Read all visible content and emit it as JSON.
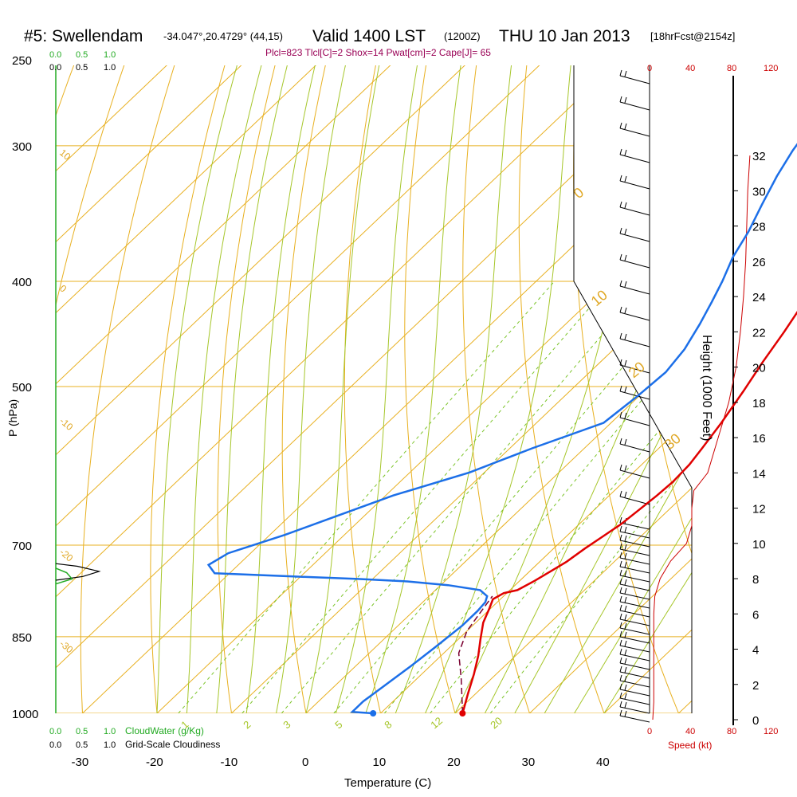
{
  "header": {
    "station": "#5: Swellendam",
    "coords": "-34.047°,20.4729° (44,15)",
    "valid": "Valid 1400 LST",
    "utc": "(1200Z)",
    "date": "THU 10 Jan 2013",
    "forecast": "[18hrFcst@2154z]",
    "indices": "Plcl=823 Tlcl[C]=2 Shox=14 Pwat[cm]=2 Cape[J]= 65"
  },
  "axes": {
    "y_label": "P (hPa)",
    "x_label": "Temperature (C)",
    "height_label": "Height (1000 Feet)",
    "speed_label": "Speed (kt)",
    "cloudwater_label": "CloudWater (g/Kg)",
    "cloudiness_label": "Grid-Scale Cloudiness",
    "cloud_ticks": [
      "0.0",
      "0.5",
      "1.0"
    ],
    "speed_ticks": [
      "0",
      "40",
      "80",
      "120"
    ]
  },
  "colors": {
    "temperature": "#e00000",
    "dewpoint": "#1c6fe8",
    "parcel": "#7a0030",
    "isotherm": "#e8b020",
    "dry_adiabat": "#e8b020",
    "moist_adiabat": "#a6c62a",
    "mixing_ratio": "#7cc42a",
    "wind_speed": "#cc0000",
    "cloudwater": "#22aa22"
  },
  "chart_data": {
    "type": "line",
    "title": "#5: Swellendam Valid 1400 LST THU 10 Jan 2013",
    "xlabel": "Temperature (C)",
    "ylabel": "P (hPa)",
    "x_ticks": [
      -30,
      -20,
      -10,
      0,
      10,
      20,
      30,
      40
    ],
    "xlim": [
      -35,
      45
    ],
    "ylim": [
      1000,
      250
    ],
    "y_ticks": [
      1000,
      850,
      700,
      500,
      400,
      300,
      250
    ],
    "y_scale": "log",
    "series": [
      {
        "name": "Temperature",
        "points": [
          [
            21,
            1000
          ],
          [
            19,
            960
          ],
          [
            17,
            920
          ],
          [
            15,
            885
          ],
          [
            13,
            855
          ],
          [
            11,
            825
          ],
          [
            9.8,
            800
          ],
          [
            9,
            785
          ],
          [
            9.6,
            775
          ],
          [
            11,
            770
          ],
          [
            12,
            755
          ],
          [
            12.8,
            740
          ],
          [
            13.6,
            725
          ],
          [
            14.2,
            705
          ],
          [
            14.8,
            690
          ],
          [
            15.6,
            670
          ],
          [
            16,
            650
          ],
          [
            16.4,
            630
          ],
          [
            16.6,
            612
          ],
          [
            16.4,
            590
          ],
          [
            15.8,
            570
          ],
          [
            14.8,
            540
          ],
          [
            13.3,
            505
          ],
          [
            11.8,
            475
          ],
          [
            10.4,
            445
          ],
          [
            9,
            420
          ],
          [
            7.4,
            390
          ],
          [
            5.8,
            360
          ],
          [
            4.5,
            340
          ],
          [
            3,
            320
          ],
          [
            1.8,
            305
          ],
          [
            0.3,
            280
          ],
          [
            -0.2,
            265
          ]
        ]
      },
      {
        "name": "Dewpoint",
        "points": [
          [
            9,
            1000
          ],
          [
            6,
            997
          ],
          [
            6,
            975
          ],
          [
            6.6,
            945
          ],
          [
            7.4,
            905
          ],
          [
            8,
            870
          ],
          [
            8.6,
            830
          ],
          [
            8.6,
            805
          ],
          [
            8.4,
            790
          ],
          [
            7.8,
            780
          ],
          [
            6,
            770
          ],
          [
            1,
            762
          ],
          [
            -5,
            756
          ],
          [
            -12,
            752
          ],
          [
            -21,
            748
          ],
          [
            -32,
            743
          ],
          [
            -34,
            730
          ],
          [
            -33,
            712
          ],
          [
            -28,
            685
          ],
          [
            -24,
            660
          ],
          [
            -19,
            630
          ],
          [
            -12,
            600
          ],
          [
            -7,
            570
          ],
          [
            -1,
            540
          ],
          [
            -0.2,
            510
          ],
          [
            0.2,
            485
          ],
          [
            -0.5,
            462
          ],
          [
            -2,
            438
          ],
          [
            -3.5,
            418
          ],
          [
            -5,
            400
          ],
          [
            -7,
            380
          ],
          [
            -8.5,
            360
          ],
          [
            -10.5,
            340
          ],
          [
            -12.5,
            320
          ],
          [
            -14,
            303
          ],
          [
            -15,
            288
          ],
          [
            -15.8,
            275
          ],
          [
            -16,
            265
          ]
        ]
      },
      {
        "name": "Parcel",
        "points": [
          [
            21,
            1000
          ],
          [
            16,
            930
          ],
          [
            12,
            880
          ],
          [
            10,
            840
          ],
          [
            9,
            800
          ],
          [
            8.5,
            780
          ]
        ]
      }
    ],
    "surface_temperature": 21,
    "surface_dewpoint": 9,
    "isotherm_labels": [
      "-30",
      "-20",
      "-10",
      "0",
      "10",
      "20",
      "30"
    ],
    "dry_adiabat_labels": [
      "10",
      "0",
      "-10",
      "-20",
      "-30"
    ],
    "moist_adiabat_labels": [
      "0",
      "10",
      "20",
      "30"
    ],
    "mixing_ratio_labels": [
      "1",
      "2",
      "3",
      "5",
      "8",
      "12",
      "20"
    ],
    "height_ticks_kft": [
      "0",
      "2",
      "4",
      "6",
      "8",
      "10",
      "12",
      "14",
      "16",
      "18",
      "20",
      "22",
      "24",
      "26",
      "28",
      "30",
      "32"
    ],
    "wind_speed_kt": [
      [
        3,
        0
      ],
      [
        4,
        1
      ],
      [
        4,
        2
      ],
      [
        4,
        4
      ],
      [
        4,
        5
      ],
      [
        4,
        6
      ],
      [
        5,
        7
      ],
      [
        10,
        8
      ],
      [
        20,
        9
      ],
      [
        35,
        10
      ],
      [
        40,
        11
      ],
      [
        40,
        12
      ],
      [
        42,
        13
      ],
      [
        55,
        14
      ],
      [
        65,
        16
      ],
      [
        75,
        18
      ],
      [
        82,
        20
      ],
      [
        86,
        22
      ],
      [
        89,
        24
      ],
      [
        91,
        26
      ],
      [
        92,
        28
      ],
      [
        93,
        30
      ],
      [
        95,
        32
      ]
    ],
    "cloudiness": [
      [
        0,
        754
      ],
      [
        0.5,
        748
      ],
      [
        0.8,
        740
      ],
      [
        0.4,
        732
      ],
      [
        0,
        728
      ]
    ],
    "cloudwater": [
      [
        0,
        760
      ],
      [
        0.3,
        752
      ],
      [
        0.2,
        742
      ],
      [
        0,
        735
      ]
    ]
  }
}
